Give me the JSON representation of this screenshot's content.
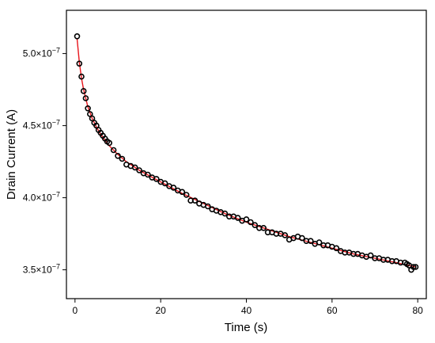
{
  "chart_data": {
    "type": "scatter",
    "xlabel": "Time (s)",
    "ylabel": "Drain Current (A)",
    "xlim": [
      -2,
      82
    ],
    "ylim": [
      3.3e-07,
      5.3e-07
    ],
    "grid": false,
    "legend": "none",
    "x_ticks": [
      {
        "value": 0,
        "label": "0"
      },
      {
        "value": 20,
        "label": "20"
      },
      {
        "value": 40,
        "label": "40"
      },
      {
        "value": 60,
        "label": "60"
      },
      {
        "value": 80,
        "label": "80"
      }
    ],
    "y_ticks": [
      {
        "value": 3.5e-07,
        "mantissa": "3.5",
        "times": "×10",
        "exponent": "−7"
      },
      {
        "value": 4e-07,
        "mantissa": "4.0",
        "times": "×10",
        "exponent": "−7"
      },
      {
        "value": 4.5e-07,
        "mantissa": "4.5",
        "times": "×10",
        "exponent": "−7"
      },
      {
        "value": 5e-07,
        "mantissa": "5.0",
        "times": "×10",
        "exponent": "−7"
      }
    ],
    "series": [
      {
        "kind": "scatter",
        "marker": "open-circle",
        "color": "#000000",
        "x": [
          0.5,
          1.0,
          1.5,
          2.0,
          2.5,
          3.0,
          3.5,
          4.0,
          4.5,
          5.0,
          5.5,
          6.0,
          6.5,
          7.0,
          7.5,
          8.0,
          9.0,
          10.0,
          11.0,
          12.0,
          13.0,
          14.0,
          15.0,
          16.0,
          17.0,
          18.0,
          19.0,
          20.0,
          21.0,
          22.0,
          23.0,
          24.0,
          25.0,
          26.0,
          27.0,
          28.0,
          29.0,
          30.0,
          31.0,
          32.0,
          33.0,
          34.0,
          35.0,
          36.0,
          37.0,
          38.0,
          39.0,
          40.0,
          41.0,
          42.0,
          43.0,
          44.0,
          45.0,
          46.0,
          47.0,
          48.0,
          49.0,
          50.0,
          51.0,
          52.0,
          53.0,
          54.0,
          55.0,
          56.0,
          57.0,
          58.0,
          59.0,
          60.0,
          61.0,
          62.0,
          63.0,
          64.0,
          65.0,
          66.0,
          67.0,
          68.0,
          69.0,
          70.0,
          71.0,
          72.0,
          73.0,
          74.0,
          75.0,
          76.0,
          77.0,
          77.5,
          78.0,
          78.5,
          79.0,
          79.5
        ],
        "y": [
          5.12e-07,
          4.93e-07,
          4.84e-07,
          4.74e-07,
          4.69e-07,
          4.62e-07,
          4.58e-07,
          4.55e-07,
          4.52e-07,
          4.5e-07,
          4.47e-07,
          4.45e-07,
          4.43e-07,
          4.41e-07,
          4.39e-07,
          4.38e-07,
          4.33e-07,
          4.29e-07,
          4.27e-07,
          4.23e-07,
          4.22e-07,
          4.21e-07,
          4.19e-07,
          4.17e-07,
          4.16e-07,
          4.14e-07,
          4.13e-07,
          4.11e-07,
          4.1e-07,
          4.08e-07,
          4.07e-07,
          4.05e-07,
          4.04e-07,
          4.02e-07,
          3.98e-07,
          3.98e-07,
          3.96e-07,
          3.95e-07,
          3.94e-07,
          3.92e-07,
          3.91e-07,
          3.9e-07,
          3.89e-07,
          3.87e-07,
          3.87e-07,
          3.86e-07,
          3.84e-07,
          3.85e-07,
          3.83e-07,
          3.81e-07,
          3.79e-07,
          3.79e-07,
          3.76e-07,
          3.76e-07,
          3.75e-07,
          3.75e-07,
          3.74e-07,
          3.71e-07,
          3.72e-07,
          3.73e-07,
          3.72e-07,
          3.7e-07,
          3.7e-07,
          3.68e-07,
          3.69e-07,
          3.67e-07,
          3.67e-07,
          3.66e-07,
          3.65e-07,
          3.63e-07,
          3.62e-07,
          3.62e-07,
          3.61e-07,
          3.61e-07,
          3.6e-07,
          3.59e-07,
          3.6e-07,
          3.58e-07,
          3.58e-07,
          3.57e-07,
          3.57e-07,
          3.56e-07,
          3.56e-07,
          3.55e-07,
          3.55e-07,
          3.54e-07,
          3.53e-07,
          3.5e-07,
          3.52e-07,
          3.52e-07
        ]
      },
      {
        "kind": "line",
        "color": "#e8141b",
        "x": [
          0.5,
          1.0,
          1.5,
          2.0,
          3.0,
          4.0,
          5.0,
          6.0,
          8.0,
          10.0,
          12.0,
          15.0,
          20.0,
          25.0,
          30.0,
          35.0,
          40.0,
          45.0,
          50.0,
          55.0,
          60.0,
          65.0,
          70.0,
          75.0,
          79.5
        ],
        "y": [
          5.1e-07,
          4.94e-07,
          4.83e-07,
          4.75e-07,
          4.63e-07,
          4.55e-07,
          4.49e-07,
          4.44e-07,
          4.36e-07,
          4.3e-07,
          4.25e-07,
          4.19e-07,
          4.11e-07,
          4.03e-07,
          3.96e-07,
          3.89e-07,
          3.83e-07,
          3.78e-07,
          3.73e-07,
          3.69e-07,
          3.65e-07,
          3.61e-07,
          3.58e-07,
          3.55e-07,
          3.52e-07
        ]
      }
    ]
  }
}
